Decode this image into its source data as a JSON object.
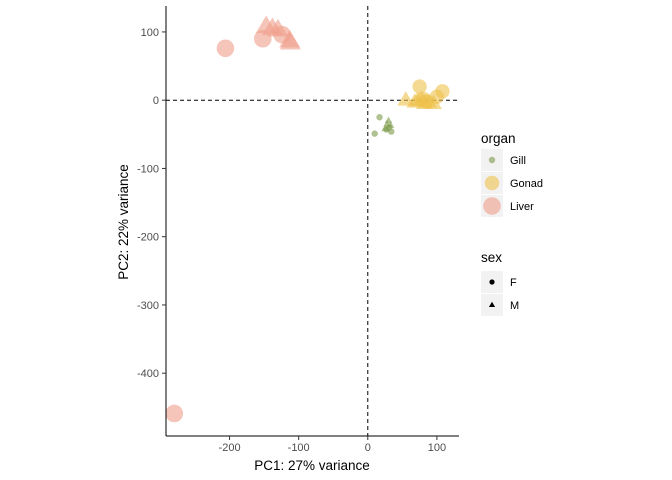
{
  "chart_data": {
    "type": "scatter",
    "xlabel": "PC1: 27% variance",
    "ylabel": "PC2: 22% variance",
    "xlim": [
      -292,
      132
    ],
    "ylim": [
      -492,
      138
    ],
    "x_ticks": [
      -200,
      -100,
      0,
      100
    ],
    "x_tick_labels": [
      "-200",
      "-100",
      "0",
      "100"
    ],
    "y_ticks": [
      100,
      0,
      -100,
      -200,
      -300,
      -400
    ],
    "y_tick_labels": [
      "100",
      "0",
      "-100",
      "-200",
      "-300",
      "-400"
    ],
    "reference_lines": {
      "x": 0,
      "y": 0,
      "style": "dashed"
    },
    "grid": false,
    "legend_position": "right",
    "legends": [
      {
        "title": "organ",
        "entries": [
          {
            "label": "Gill",
            "color": "#7b9a48",
            "size": "small"
          },
          {
            "label": "Gonad",
            "color": "#eec24b",
            "size": "medium"
          },
          {
            "label": "Liver",
            "color": "#f09f8a",
            "size": "large"
          }
        ]
      },
      {
        "title": "sex",
        "entries": [
          {
            "label": "F",
            "shape": "circle"
          },
          {
            "label": "M",
            "shape": "triangle"
          }
        ]
      }
    ],
    "series": [
      {
        "organ": "Gill",
        "sex": "F",
        "color": "#7b9a48",
        "size": "small",
        "points": [
          [
            17,
            -25
          ],
          [
            10,
            -49
          ],
          [
            31,
            -40
          ],
          [
            27,
            -43
          ],
          [
            34,
            -46
          ]
        ]
      },
      {
        "organ": "Gill",
        "sex": "M",
        "color": "#7b9a48",
        "size": "small",
        "points": [
          [
            28,
            -35
          ],
          [
            30,
            -30
          ],
          [
            33,
            -37
          ],
          [
            25,
            -42
          ]
        ]
      },
      {
        "organ": "Gonad",
        "sex": "F",
        "color": "#eec24b",
        "size": "medium",
        "points": [
          [
            75,
            20
          ],
          [
            108,
            13
          ],
          [
            80,
            2
          ],
          [
            85,
            -2
          ],
          [
            100,
            5
          ]
        ]
      },
      {
        "organ": "Gonad",
        "sex": "M",
        "color": "#eec24b",
        "size": "medium",
        "points": [
          [
            55,
            0
          ],
          [
            68,
            -3
          ],
          [
            78,
            0
          ],
          [
            82,
            -5
          ],
          [
            88,
            -3
          ],
          [
            95,
            -5
          ],
          [
            72,
            -1
          ]
        ]
      },
      {
        "organ": "Liver",
        "sex": "F",
        "color": "#f09f8a",
        "size": "large",
        "points": [
          [
            -206,
            76
          ],
          [
            -152,
            90
          ],
          [
            -124,
            96
          ],
          [
            -280,
            -459
          ]
        ]
      },
      {
        "organ": "Liver",
        "sex": "M",
        "color": "#f09f8a",
        "size": "large",
        "points": [
          [
            -147,
            108
          ],
          [
            -138,
            105
          ],
          [
            -130,
            103
          ],
          [
            -112,
            84
          ],
          [
            -113,
            87
          ]
        ]
      }
    ]
  }
}
